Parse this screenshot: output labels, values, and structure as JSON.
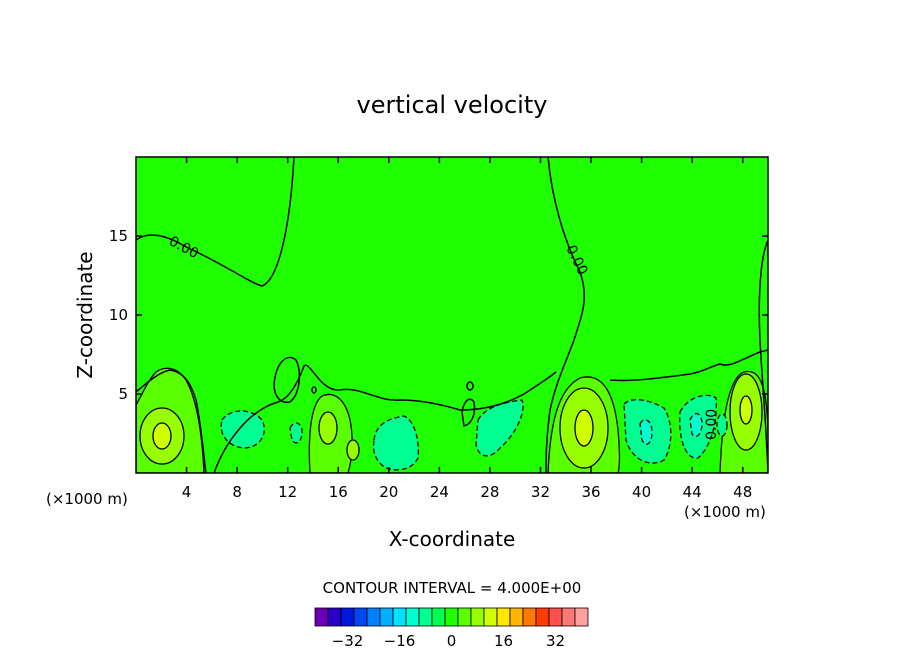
{
  "chart_data": {
    "type": "heatmap",
    "title": "vertical velocity",
    "xlabel": "X-coordinate",
    "ylabel": "Z-coordinate",
    "x_unit_left": "(×1000 m)",
    "x_unit_right": "(×1000 m)",
    "xlim": [
      0,
      50
    ],
    "ylim": [
      0,
      20
    ],
    "x_ticks": [
      "4",
      "8",
      "12",
      "16",
      "20",
      "24",
      "28",
      "32",
      "36",
      "40",
      "44",
      "48"
    ],
    "y_ticks": [
      "5",
      "10",
      "15"
    ],
    "x_tick_values": [
      4,
      8,
      12,
      16,
      20,
      24,
      28,
      32,
      36,
      40,
      44,
      48
    ],
    "y_tick_values": [
      5,
      10,
      15
    ],
    "contour_labels": [
      "0.00",
      "0.00",
      "0.00"
    ],
    "contour_interval_text": "CONTOUR INTERVAL = 4.000E+00",
    "background_level": 0,
    "features": [
      {
        "kind": "updraft",
        "x": 2.0,
        "z": 2.3,
        "peak": 12
      },
      {
        "kind": "updraft",
        "x": 15.3,
        "z": 2.8,
        "peak": 8
      },
      {
        "kind": "updraft",
        "x": 35.5,
        "z": 3.0,
        "peak": 16
      },
      {
        "kind": "updraft",
        "x": 48.2,
        "z": 3.8,
        "peak": 16
      },
      {
        "kind": "downdraft",
        "x": 8.5,
        "z": 3.0,
        "peak": -4
      },
      {
        "kind": "downdraft",
        "x": 20.5,
        "z": 1.8,
        "peak": -4
      },
      {
        "kind": "downdraft",
        "x": 27.8,
        "z": 2.8,
        "peak": -4
      },
      {
        "kind": "downdraft",
        "x": 40.2,
        "z": 2.6,
        "peak": -8
      },
      {
        "kind": "downdraft",
        "x": 43.8,
        "z": 3.0,
        "peak": -8
      }
    ]
  },
  "colorbar": {
    "tick_labels": [
      "−32",
      "−16",
      "0",
      "16",
      "32"
    ],
    "tick_values": [
      -32,
      -16,
      0,
      16,
      32
    ],
    "colors": [
      "#6a00b4",
      "#2a00c8",
      "#0018dc",
      "#0048f0",
      "#0080ff",
      "#00b0ff",
      "#00e0ff",
      "#00ffd0",
      "#00ff90",
      "#00ff50",
      "#20ff00",
      "#5aff00",
      "#98ff00",
      "#d0ff00",
      "#ffe600",
      "#ffb400",
      "#ff7800",
      "#ff3c00",
      "#ff5050",
      "#ff7878",
      "#ffa0a0"
    ]
  },
  "colors": {
    "background_field": "#1eff00",
    "weak_up": "#5aff00",
    "mid_up": "#98ff00",
    "strong_up": "#d0ff00",
    "weak_down": "#00ff90",
    "mid_down": "#00ffd0"
  }
}
